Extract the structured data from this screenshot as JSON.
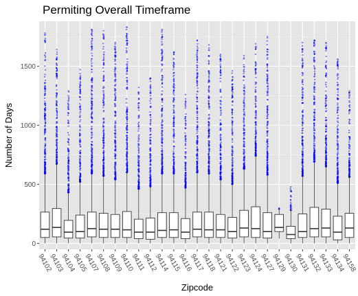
{
  "chart_data": {
    "type": "boxplot",
    "title": "Permiting Overall Timeframe",
    "xlabel": "Zipcode",
    "ylabel": "Number of Days",
    "ylim": [
      -50,
      1880
    ],
    "yticks": [
      0,
      500,
      1000,
      1500
    ],
    "grid": true,
    "background": "#e5e5e5",
    "outlier_color": "#0000ff",
    "categories": [
      "94102",
      "94103",
      "94104",
      "94105",
      "94107",
      "94108",
      "94109",
      "94110",
      "94111",
      "94112",
      "94114",
      "94115",
      "94116",
      "94117",
      "94118",
      "94121",
      "94122",
      "94123",
      "94124",
      "94127",
      "94129",
      "94130",
      "94131",
      "94132",
      "94133",
      "94134",
      "94158"
    ],
    "boxes": [
      {
        "q1": 50,
        "median": 120,
        "q3": 265,
        "whisker_low": 0,
        "whisker_high": 590,
        "outlier_max": 1780
      },
      {
        "q1": 55,
        "median": 135,
        "q3": 295,
        "whisker_low": 0,
        "whisker_high": 670,
        "outlier_max": 1640
      },
      {
        "q1": 45,
        "median": 95,
        "q3": 195,
        "whisker_low": 0,
        "whisker_high": 430,
        "outlier_max": 1290
      },
      {
        "q1": 45,
        "median": 100,
        "q3": 240,
        "whisker_low": 0,
        "whisker_high": 520,
        "outlier_max": 1470
      },
      {
        "q1": 55,
        "median": 125,
        "q3": 265,
        "whisker_low": 0,
        "whisker_high": 590,
        "outlier_max": 1810
      },
      {
        "q1": 50,
        "median": 120,
        "q3": 255,
        "whisker_low": 0,
        "whisker_high": 570,
        "outlier_max": 1800
      },
      {
        "q1": 50,
        "median": 120,
        "q3": 245,
        "whisker_low": 0,
        "whisker_high": 540,
        "outlier_max": 1700
      },
      {
        "q1": 50,
        "median": 115,
        "q3": 270,
        "whisker_low": 0,
        "whisker_high": 600,
        "outlier_max": 1830
      },
      {
        "q1": 40,
        "median": 95,
        "q3": 205,
        "whisker_low": 0,
        "whisker_high": 460,
        "outlier_max": 1320
      },
      {
        "q1": 35,
        "median": 95,
        "q3": 215,
        "whisker_low": 0,
        "whisker_high": 480,
        "outlier_max": 1400
      },
      {
        "q1": 50,
        "median": 110,
        "q3": 260,
        "whisker_low": 0,
        "whisker_high": 590,
        "outlier_max": 1810
      },
      {
        "q1": 50,
        "median": 115,
        "q3": 260,
        "whisker_low": 0,
        "whisker_high": 590,
        "outlier_max": 1620
      },
      {
        "q1": 40,
        "median": 95,
        "q3": 210,
        "whisker_low": 0,
        "whisker_high": 470,
        "outlier_max": 1260
      },
      {
        "q1": 55,
        "median": 120,
        "q3": 265,
        "whisker_low": 0,
        "whisker_high": 600,
        "outlier_max": 1720
      },
      {
        "q1": 50,
        "median": 115,
        "q3": 265,
        "whisker_low": 0,
        "whisker_high": 590,
        "outlier_max": 1680
      },
      {
        "q1": 50,
        "median": 115,
        "q3": 245,
        "whisker_low": 0,
        "whisker_high": 540,
        "outlier_max": 1600
      },
      {
        "q1": 45,
        "median": 100,
        "q3": 220,
        "whisker_low": 0,
        "whisker_high": 500,
        "outlier_max": 1460
      },
      {
        "q1": 55,
        "median": 130,
        "q3": 280,
        "whisker_low": 0,
        "whisker_high": 630,
        "outlier_max": 1590
      },
      {
        "q1": 50,
        "median": 125,
        "q3": 310,
        "whisker_low": 0,
        "whisker_high": 740,
        "outlier_max": 1690
      },
      {
        "q1": 45,
        "median": 100,
        "q3": 260,
        "whisker_low": 0,
        "whisker_high": 580,
        "outlier_max": 1750
      },
      {
        "q1": 100,
        "median": 135,
        "q3": 245,
        "whisker_low": 40,
        "whisker_high": 290,
        "outlier_max": 300
      },
      {
        "q1": 40,
        "median": 75,
        "q3": 145,
        "whisker_low": 0,
        "whisker_high": 280,
        "outlier_max": 480
      },
      {
        "q1": 50,
        "median": 100,
        "q3": 250,
        "whisker_low": 0,
        "whisker_high": 570,
        "outlier_max": 1700
      },
      {
        "q1": 55,
        "median": 125,
        "q3": 305,
        "whisker_low": 0,
        "whisker_high": 690,
        "outlier_max": 1720
      },
      {
        "q1": 55,
        "median": 130,
        "q3": 290,
        "whisker_low": 0,
        "whisker_high": 650,
        "outlier_max": 1700
      },
      {
        "q1": 30,
        "median": 95,
        "q3": 230,
        "whisker_low": 0,
        "whisker_high": 510,
        "outlier_max": 1560
      },
      {
        "q1": 50,
        "median": 130,
        "q3": 255,
        "whisker_low": 0,
        "whisker_high": 560,
        "outlier_max": 1290
      }
    ]
  }
}
